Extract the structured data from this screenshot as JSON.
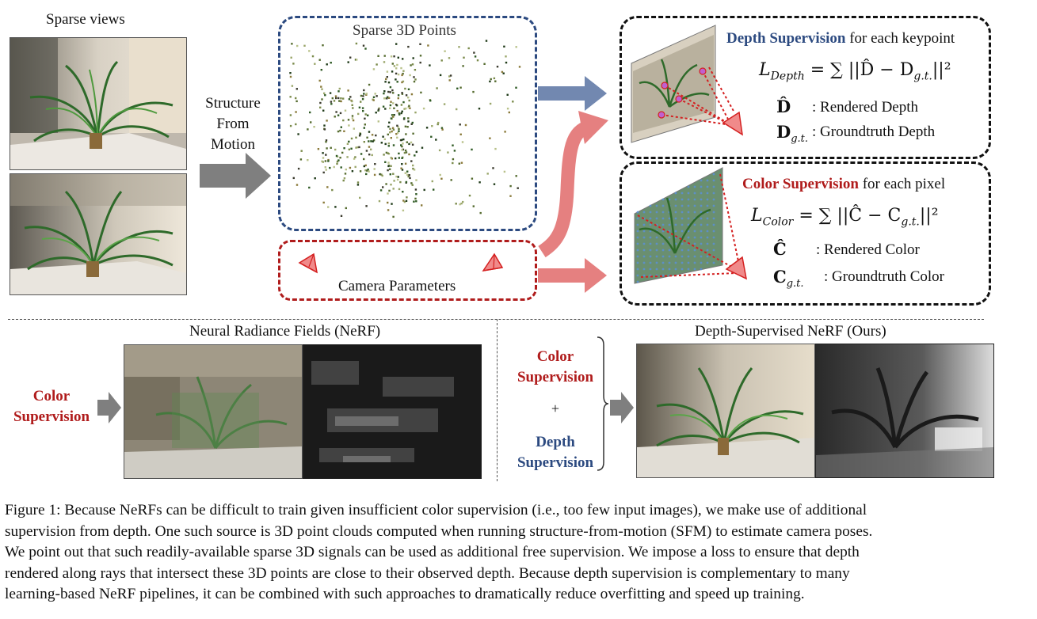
{
  "top": {
    "sparse_views": "Sparse views",
    "sfm_lines": [
      "Structure",
      "From",
      "Motion"
    ],
    "sparse_points": "Sparse 3D Points",
    "camera_parameters": "Camera Parameters"
  },
  "depth_box": {
    "title_emph": "Depth Supervision",
    "title_rest": " for each keypoint",
    "formula_lhs": "L",
    "formula_sub": "Depth",
    "formula_rhs": " = ∑ ||D̂ − D",
    "formula_rhs_sub": "g.t.",
    "formula_rhs_tail": "||²",
    "sym1": "D̂",
    "desc1": ": Rendered Depth",
    "sym2": "D",
    "sym2_sub": "g.t.",
    "desc2": ": Groundtruth Depth"
  },
  "color_box": {
    "title_emph": "Color Supervision",
    "title_rest": " for each pixel",
    "formula_lhs": "L",
    "formula_sub": "Color",
    "formula_rhs": " = ∑ ||Ĉ − C",
    "formula_rhs_sub": "g.t.",
    "formula_rhs_tail": "||²",
    "sym1": "Ĉ",
    "desc1": ": Rendered Color",
    "sym2": "C",
    "sym2_sub": "g.t.",
    "desc2": ": Groundtruth Color"
  },
  "bottom": {
    "nerf_title": "Neural Radiance Fields (NeRF)",
    "ds_title": "Depth-Supervised NeRF (Ours)",
    "left_label_1": "Color",
    "left_label_2": "Supervision",
    "mid_color_1": "Color",
    "mid_color_2": "Supervision",
    "plus": "+",
    "mid_depth_1": "Depth",
    "mid_depth_2": "Supervision"
  },
  "caption": [
    "Figure 1:  Because NeRFs can be difficult to train given insufficient color supervision (i.e., too few input images), we make use of additional",
    "supervision from depth. One such source is 3D point clouds computed when running structure-from-motion (SFM) to estimate camera poses.",
    "We point out that such readily-available sparse 3D signals can be used as additional free supervision. We impose a loss to ensure that depth",
    "rendered along rays that intersect these 3D points are close to their observed depth. Because depth supervision is complementary to many",
    "learning-based NeRF pipelines, it can be combined with such approaches to dramatically reduce overfitting and speed up training."
  ],
  "colors": {
    "blue_accent": "#2c4a80",
    "red_accent": "#b01c1c",
    "arrow_gray": "#7f7f7f",
    "arrow_blue": "#7288b0",
    "arrow_red": "#e58080"
  }
}
